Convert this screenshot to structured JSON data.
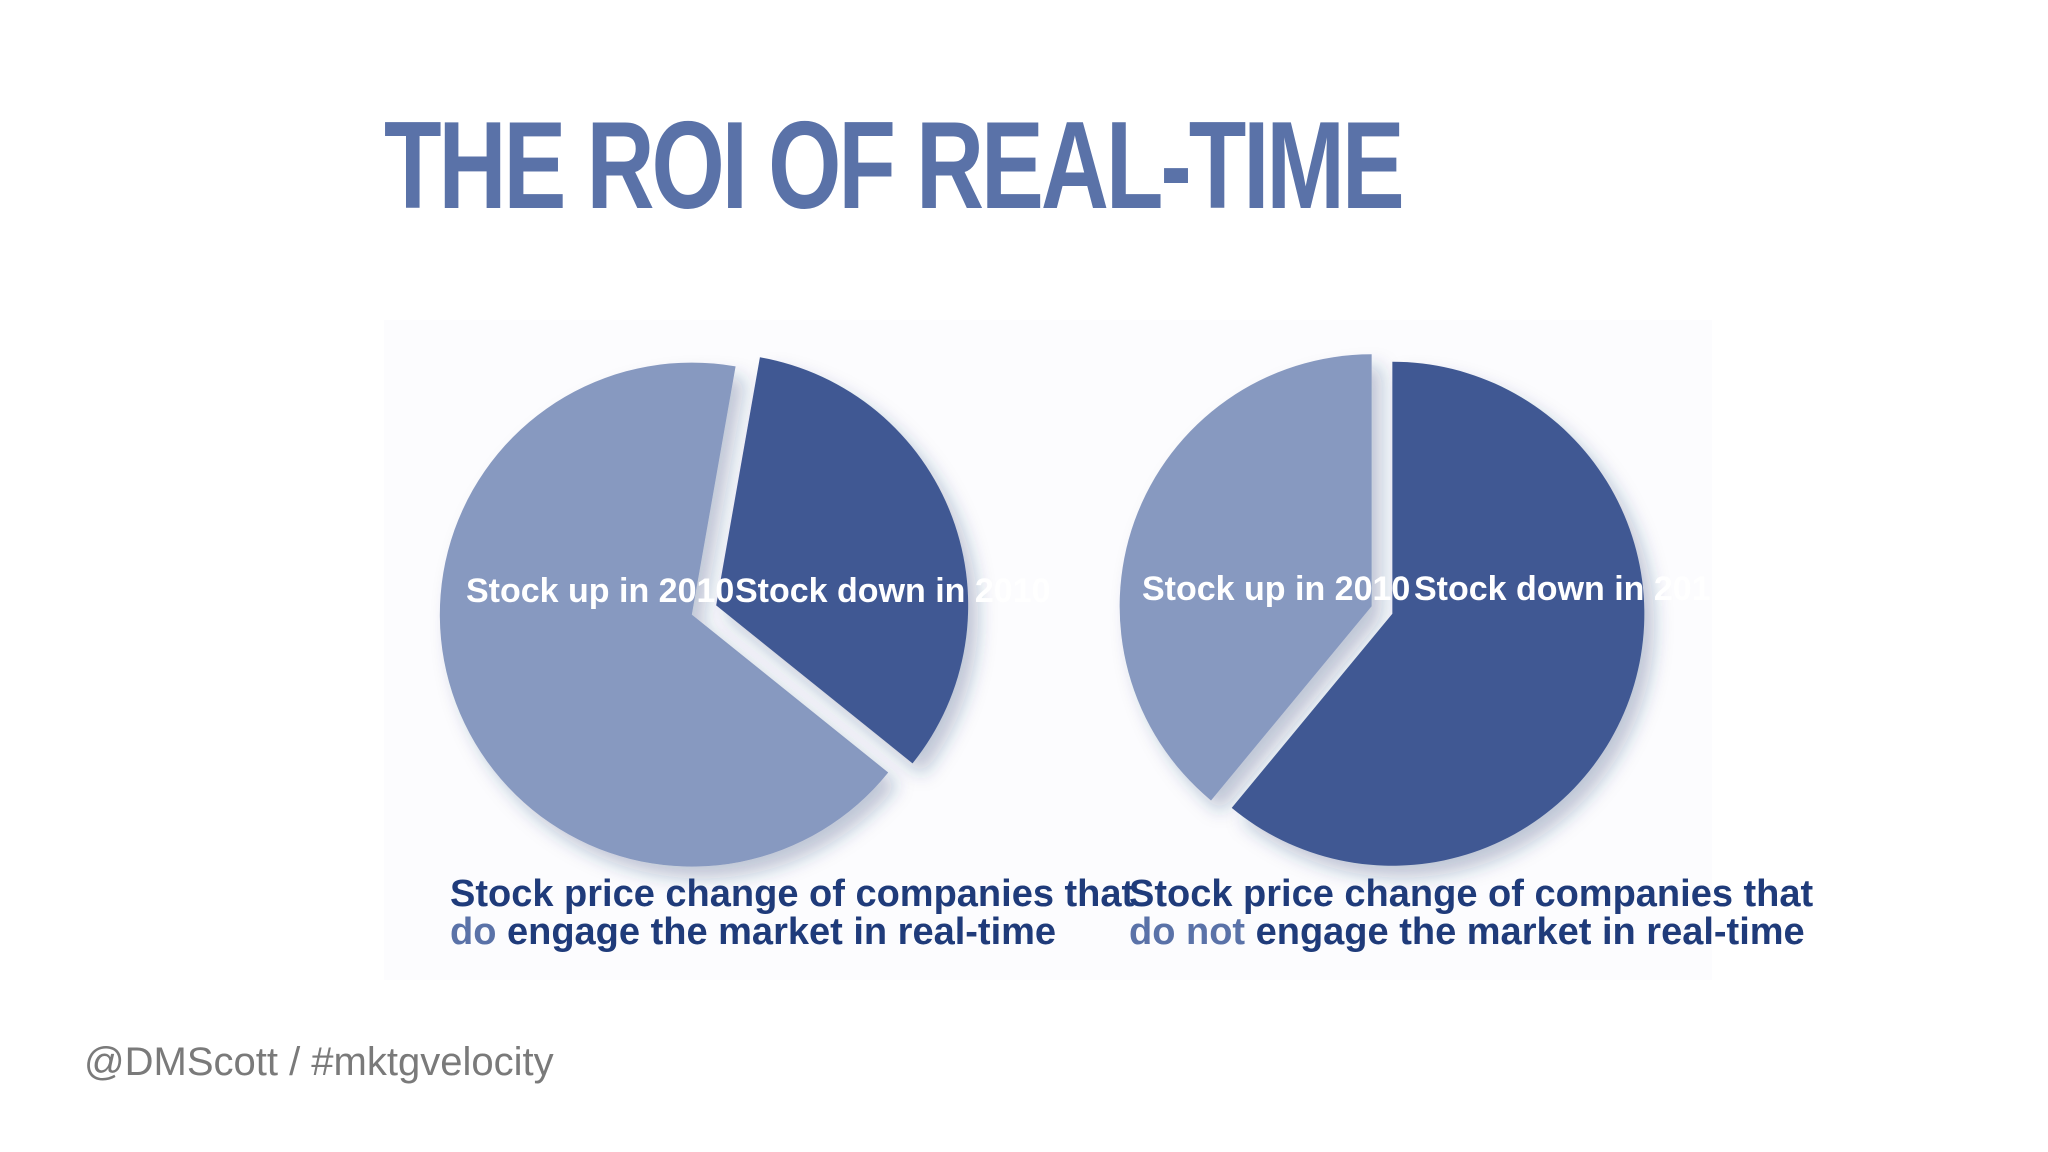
{
  "title": "THE ROI OF REAL-TIME",
  "footer": "@DMScott / #mktgvelocity",
  "colors": {
    "title": "#5a72a8",
    "slice_up": "#8799c0",
    "slice_down": "#3f5993",
    "caption_main": "#1f3b7a",
    "caption_accent": "#5a72a8",
    "footer": "#7a7a7a"
  },
  "chart_data": [
    {
      "type": "pie",
      "slices": [
        {
          "label": "Stock up in 2010",
          "value": 67
        },
        {
          "label": "Stock down in 2010",
          "value": 33
        }
      ],
      "caption": {
        "line1": "Stock price change of companies that",
        "line2_accent": "do",
        "line2_rest": " engage the market in real-time"
      }
    },
    {
      "type": "pie",
      "slices": [
        {
          "label": "Stock up in 2010",
          "value": 39
        },
        {
          "label": "Stock down in 2010",
          "value": 61
        }
      ],
      "caption": {
        "line1": "Stock price change of companies that",
        "line2_accent": "do not",
        "line2_rest": " engage the market in real-time"
      }
    }
  ]
}
